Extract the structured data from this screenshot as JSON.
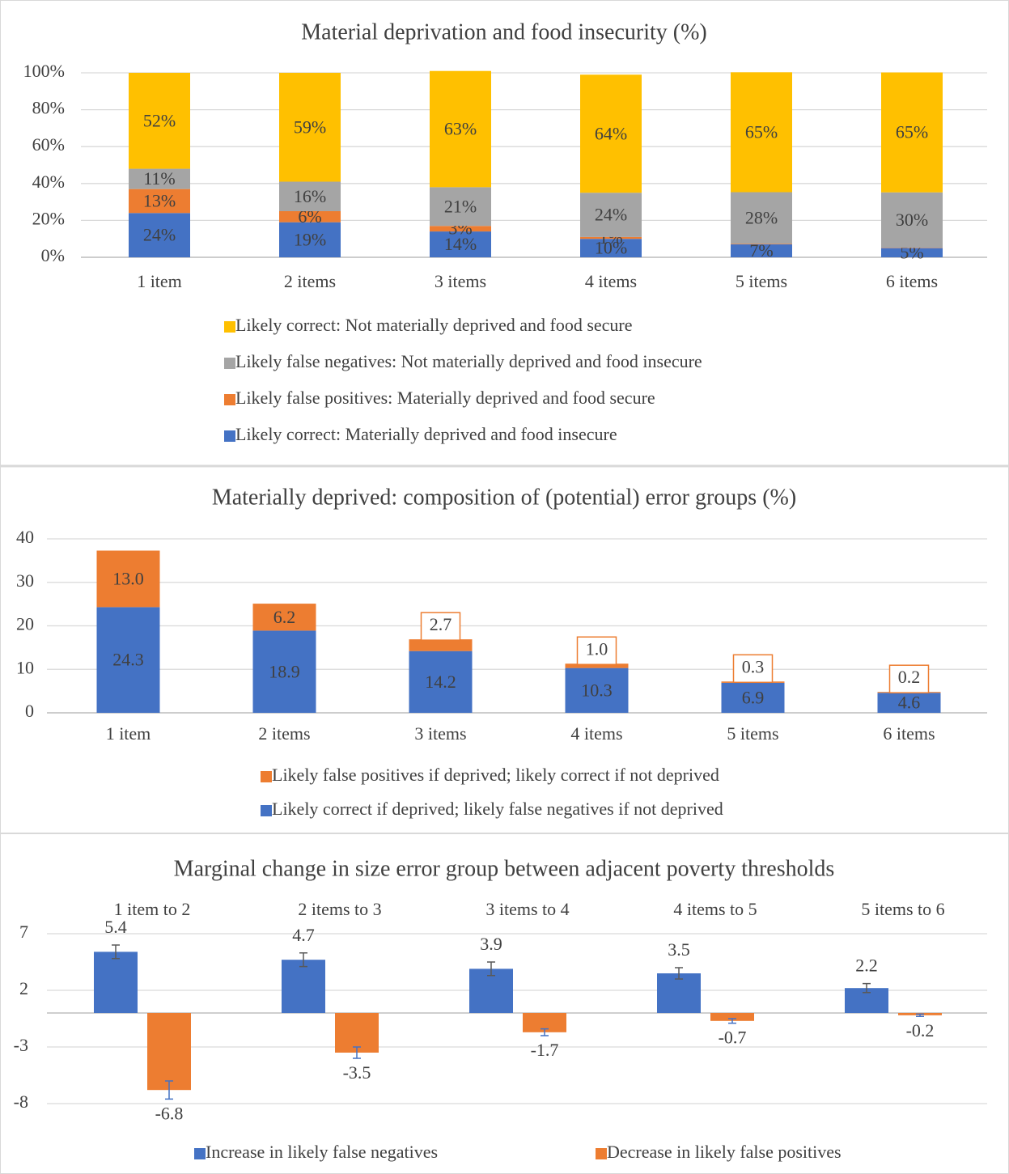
{
  "chart_data": [
    {
      "type": "bar",
      "stacked": true,
      "title": "Material deprivation and food insecurity (%)",
      "categories": [
        "1 item",
        "2 items",
        "3 items",
        "4 items",
        "5 items",
        "6 items"
      ],
      "series": [
        {
          "name": "Likely correct: Materially deprived and food insecure",
          "color": "#4472c4",
          "values": [
            24,
            19,
            14,
            10,
            7,
            5
          ],
          "value_labels": [
            "24%",
            "19%",
            "14%",
            "10%",
            "7%",
            "5%"
          ]
        },
        {
          "name": "Likely false positives: Materially deprived and food secure",
          "color": "#ed7d31",
          "values": [
            13,
            6,
            3,
            1,
            0.3,
            0.2
          ],
          "value_labels": [
            "13%",
            "6%",
            "3%",
            "1%",
            null,
            null
          ]
        },
        {
          "name": "Likely false negatives: Not materially deprived and food insecure",
          "color": "#a5a5a5",
          "values": [
            11,
            16,
            21,
            24,
            28,
            30
          ],
          "value_labels": [
            "11%",
            "16%",
            "21%",
            "24%",
            "28%",
            "30%"
          ]
        },
        {
          "name": "Likely correct: Not materially deprived and food secure",
          "color": "#ffc000",
          "values": [
            52,
            59,
            63,
            64,
            65,
            65
          ],
          "value_labels": [
            "52%",
            "59%",
            "63%",
            "64%",
            "65%",
            "65%"
          ]
        }
      ],
      "ylim": [
        0,
        100
      ],
      "yticks": [
        {
          "value": 0,
          "label": "0%"
        },
        {
          "value": 20,
          "label": "20%"
        },
        {
          "value": 40,
          "label": "40%"
        },
        {
          "value": 60,
          "label": "60%"
        },
        {
          "value": 80,
          "label": "80%"
        },
        {
          "value": 100,
          "label": "100%"
        }
      ],
      "grid": true,
      "legend": "bottom"
    },
    {
      "type": "bar",
      "stacked": true,
      "title": "Materially deprived: composition of (potential) error groups (%)",
      "categories": [
        "1 item",
        "2 items",
        "3 items",
        "4 items",
        "5 items",
        "6 items"
      ],
      "series": [
        {
          "name": "Likely correct if deprived; likely false negatives if not deprived",
          "color": "#4472c4",
          "values": [
            24.3,
            18.9,
            14.2,
            10.3,
            6.9,
            4.6
          ]
        },
        {
          "name": "Likely false positives if deprived; likely correct if not deprived",
          "color": "#ed7d31",
          "values": [
            13,
            6.2,
            2.7,
            1,
            0.3,
            0.2
          ],
          "value_labels": [
            "13.0",
            "6.2",
            "2.7",
            "1.0",
            "0.3",
            "0.2"
          ]
        }
      ],
      "ylim": [
        0,
        40
      ],
      "yticks": [
        0,
        10,
        20,
        30,
        40
      ],
      "grid": true,
      "legend": "bottom"
    },
    {
      "type": "bar",
      "stacked": false,
      "title": "Marginal change in size error group between adjacent poverty thresholds",
      "categories": [
        "1 item to 2",
        "2 items to 3",
        "3 items to 4",
        "4 items to 5",
        "5 items to 6"
      ],
      "series": [
        {
          "name": "Increase in likely false negatives",
          "color": "#4472c4",
          "error_color": "#595959",
          "values": [
            5.4,
            4.7,
            3.9,
            3.5,
            2.2
          ],
          "errors": [
            0.6,
            0.6,
            0.6,
            0.5,
            0.4
          ]
        },
        {
          "name": "Decrease in likely false positives",
          "color": "#ed7d31",
          "error_color": "#4472c4",
          "values": [
            -6.8,
            -3.5,
            -1.7,
            -0.7,
            -0.2
          ],
          "errors": [
            0.8,
            0.5,
            0.3,
            0.2,
            0.1
          ]
        }
      ],
      "ylim": [
        -8,
        7
      ],
      "yticks": [
        7,
        2,
        -3,
        -8
      ],
      "grid": true,
      "legend": "bottom",
      "category_axis": "top"
    }
  ]
}
